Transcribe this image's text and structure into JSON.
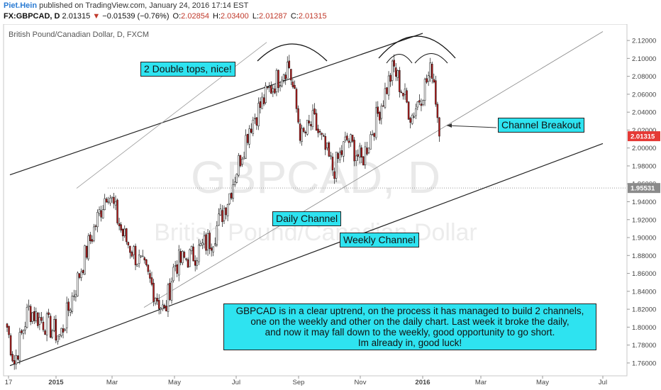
{
  "header": {
    "author": "Piet.Hein",
    "published_text": "published on TradingView.com, January 24, 2016 17:14 EST",
    "symbol": "FX:GBPCAD, D",
    "last": "2.01315",
    "change_arrow": "▼",
    "change": "−0.01539 (−0.76%)",
    "o_label": "O:",
    "o_value": "2.02854",
    "h_label": "H:",
    "h_value": "2.03400",
    "l_label": "L:",
    "l_value": "2.01287",
    "c_label": "C:",
    "c_value": "2.01315"
  },
  "annotations": {
    "double_tops": "2 Double tops, nice!",
    "channel_breakout": "Channel Breakout",
    "daily_channel": "Daily Channel",
    "weekly_channel": "Weekly Channel",
    "note_lines": [
      "GBPCAD is in a clear uptrend, on the process it has managed to build 2 channels,",
      "one on the weekly and other on the daily chart. Last week it broke the daily,",
      "and now it may fall down to the weekly, good opportunity to go short.",
      "Im already in, good luck!"
    ]
  },
  "chart_data": {
    "type": "candlestick",
    "title": "British Pound/Canadian Dollar, D, FXCM",
    "watermark_symbol": "GBPCAD, D",
    "watermark_name": "British Pound/Canadian Dollar",
    "x_ticks": [
      "17",
      "2015",
      "Mar",
      "May",
      "Jul",
      "Sep",
      "Nov",
      "2016",
      "Mar",
      "May",
      "Jul"
    ],
    "y_ticks": [
      "2.12000",
      "2.10000",
      "2.08000",
      "2.06000",
      "2.04000",
      "2.02000",
      "2.00000",
      "1.98000",
      "1.96000",
      "1.94000",
      "1.92000",
      "1.90000",
      "1.88000",
      "1.86000",
      "1.84000",
      "1.82000",
      "1.80000",
      "1.78000",
      "1.76000"
    ],
    "ylim": [
      1.752,
      2.128
    ],
    "price_labels": [
      {
        "value": "2.01315",
        "color": "#e53935"
      },
      {
        "value": "1.95531",
        "color": "#8a8a8a"
      }
    ],
    "path_anchors": [
      [
        "Dec 2014",
        1.8
      ],
      [
        "Dec 2014",
        1.76
      ],
      [
        "Jan 2015",
        1.82
      ],
      [
        "Jan 2015",
        1.79
      ],
      [
        "Feb 2015",
        1.88
      ],
      [
        "Feb 2015",
        1.955
      ],
      [
        "Mar 2015",
        1.905
      ],
      [
        "Apr 2015",
        1.86
      ],
      [
        "May 2015",
        1.815
      ],
      [
        "May 2015",
        1.87
      ],
      [
        "Jun 2015",
        1.88
      ],
      [
        "Jun 2015",
        1.9
      ],
      [
        "Jul 2015",
        1.945
      ],
      [
        "Jul 2015",
        2.025
      ],
      [
        "Aug 2015",
        2.065
      ],
      [
        "Aug 2015",
        2.095
      ],
      [
        "Sep 2015",
        2.01
      ],
      [
        "Oct 2015",
        2.03
      ],
      [
        "Oct 2015",
        1.975
      ],
      [
        "Nov 2015",
        2.01
      ],
      [
        "Nov 2015",
        1.985
      ],
      [
        "Dec 2015",
        2.09
      ],
      [
        "Dec 2015",
        2.035
      ],
      [
        "Jan 2016",
        2.09
      ],
      [
        "Jan 2016",
        2.013
      ]
    ],
    "trendlines": [
      {
        "name": "upper channel line",
        "from": [
          "Dec 2014",
          1.97
        ],
        "to": [
          "Jan 2016",
          2.128
        ]
      },
      {
        "name": "daily channel lower",
        "from": [
          "Apr 2015",
          1.822
        ],
        "to": [
          "Jul 2016",
          2.13
        ]
      },
      {
        "name": "daily channel upper",
        "from": [
          "Feb 2015",
          1.955
        ],
        "to": [
          "Aug 2015",
          2.118
        ]
      },
      {
        "name": "weekly channel",
        "from": [
          "Dec 2014",
          1.757
        ],
        "to": [
          "Jul 2016",
          2.005
        ]
      }
    ]
  }
}
